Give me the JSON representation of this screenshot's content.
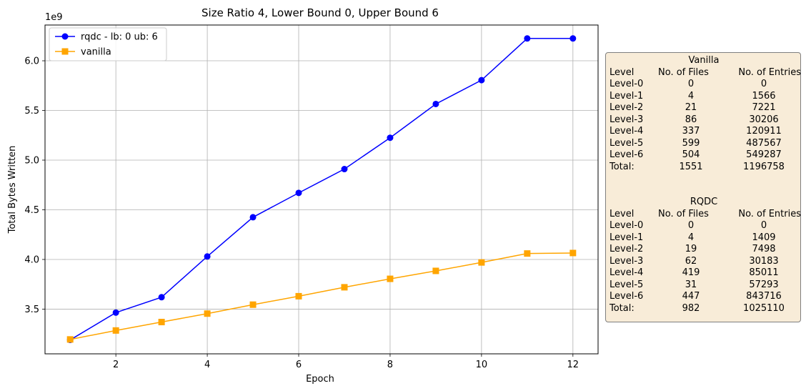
{
  "chart_data": {
    "type": "line",
    "title": "Size Ratio 4, Lower Bound 0, Upper Bound 6",
    "xlabel": "Epoch",
    "ylabel": "Total Bytes Written",
    "y_offset_label": "1e9",
    "x": [
      1,
      2,
      3,
      4,
      5,
      6,
      7,
      8,
      9,
      10,
      11,
      12
    ],
    "xlim": [
      0.45,
      12.55
    ],
    "ylim": [
      3.05,
      6.36
    ],
    "xticks": [
      2,
      4,
      6,
      8,
      10,
      12
    ],
    "yticks": [
      3.5,
      4.0,
      4.5,
      5.0,
      5.5,
      6.0
    ],
    "ytick_labels": [
      "3.5",
      "4.0",
      "4.5",
      "5.0",
      "5.5",
      "6.0"
    ],
    "grid": true,
    "legend_position": "top-left",
    "series": [
      {
        "name": "rqdc - lb: 0 ub: 6",
        "color": "#0000ff",
        "marker": "circle",
        "values": [
          3.19,
          3.465,
          3.62,
          4.03,
          4.425,
          4.67,
          4.91,
          5.225,
          5.565,
          5.805,
          6.225,
          6.225
        ]
      },
      {
        "name": "vanilla",
        "color": "#ffa500",
        "marker": "square",
        "values": [
          3.195,
          3.285,
          3.37,
          3.455,
          3.545,
          3.63,
          3.72,
          3.805,
          3.885,
          3.97,
          4.06,
          4.065
        ]
      }
    ]
  },
  "stats_box": {
    "vanilla": {
      "title": "Vanilla",
      "headers": [
        "Level",
        "No. of Files",
        "No. of Entries"
      ],
      "rows": [
        [
          "Level-0",
          "0",
          "0"
        ],
        [
          "Level-1",
          "4",
          "1566"
        ],
        [
          "Level-2",
          "21",
          "7221"
        ],
        [
          "Level-3",
          "86",
          "30206"
        ],
        [
          "Level-4",
          "337",
          "120911"
        ],
        [
          "Level-5",
          "599",
          "487567"
        ],
        [
          "Level-6",
          "504",
          "549287"
        ],
        [
          "Total:",
          "1551",
          "1196758"
        ]
      ]
    },
    "rqdc": {
      "title": "RQDC",
      "headers": [
        "Level",
        "No. of Files",
        "No. of Entries"
      ],
      "rows": [
        [
          "Level-0",
          "0",
          "0"
        ],
        [
          "Level-1",
          "4",
          "1409"
        ],
        [
          "Level-2",
          "19",
          "7498"
        ],
        [
          "Level-3",
          "62",
          "30183"
        ],
        [
          "Level-4",
          "419",
          "85011"
        ],
        [
          "Level-5",
          "31",
          "57293"
        ],
        [
          "Level-6",
          "447",
          "843716"
        ],
        [
          "Total:",
          "982",
          "1025110"
        ]
      ]
    },
    "colors": {
      "background": "#f8ecd8",
      "border": "#7f7f7f"
    }
  }
}
